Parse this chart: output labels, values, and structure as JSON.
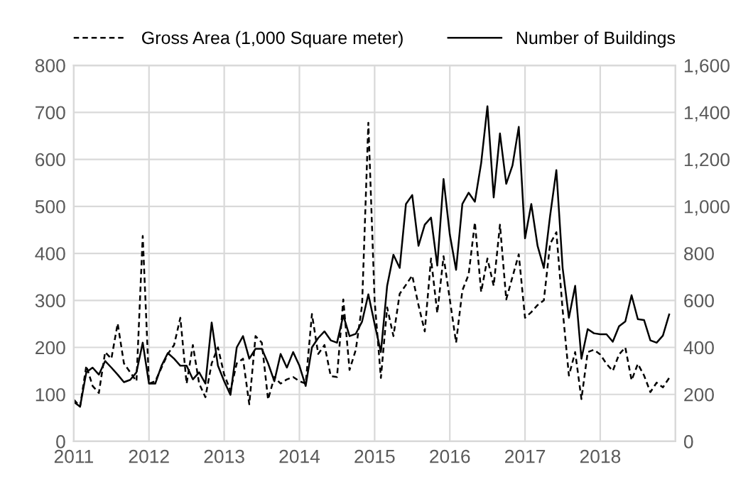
{
  "chart_data": {
    "type": "line",
    "legend": "top",
    "grid": true,
    "marker": "none",
    "x": [
      "2011-01",
      "2011-02",
      "2011-03",
      "2011-04",
      "2011-05",
      "2011-06",
      "2011-07",
      "2011-08",
      "2011-09",
      "2011-10",
      "2011-11",
      "2011-12",
      "2012-01",
      "2012-02",
      "2012-03",
      "2012-04",
      "2012-05",
      "2012-06",
      "2012-07",
      "2012-08",
      "2012-09",
      "2012-10",
      "2012-11",
      "2012-12",
      "2013-01",
      "2013-02",
      "2013-03",
      "2013-04",
      "2013-05",
      "2013-06",
      "2013-07",
      "2013-08",
      "2013-09",
      "2013-10",
      "2013-11",
      "2013-12",
      "2014-01",
      "2014-02",
      "2014-03",
      "2014-04",
      "2014-05",
      "2014-06",
      "2014-07",
      "2014-08",
      "2014-09",
      "2014-10",
      "2014-11",
      "2014-12",
      "2015-01",
      "2015-02",
      "2015-03",
      "2015-04",
      "2015-05",
      "2015-06",
      "2015-07",
      "2015-08",
      "2015-09",
      "2015-10",
      "2015-11",
      "2015-12",
      "2016-01",
      "2016-02",
      "2016-03",
      "2016-04",
      "2016-05",
      "2016-06",
      "2016-07",
      "2016-08",
      "2016-09",
      "2016-10",
      "2016-11",
      "2016-12",
      "2017-01",
      "2017-02",
      "2017-03",
      "2017-04",
      "2017-05",
      "2017-06",
      "2017-07",
      "2017-08",
      "2017-09",
      "2017-10",
      "2017-11",
      "2017-12",
      "2018-01",
      "2018-02",
      "2018-03",
      "2018-04",
      "2018-05",
      "2018-06",
      "2018-07",
      "2018-08",
      "2018-09",
      "2018-10",
      "2018-11",
      "2018-12"
    ],
    "xlim": [
      "2011-01",
      "2019-01"
    ],
    "xticks": [
      "2011",
      "2012",
      "2013",
      "2014",
      "2015",
      "2016",
      "2017",
      "2018"
    ],
    "ylim": [
      0,
      800
    ],
    "yticks": [
      0,
      100,
      200,
      300,
      400,
      500,
      600,
      700,
      800
    ],
    "y2lim": [
      0,
      1600
    ],
    "y2ticks": [
      0,
      200,
      400,
      600,
      800,
      {
        "value": 1000,
        "label": "1,000"
      },
      {
        "value": 1200,
        "label": "1,200"
      },
      {
        "value": 1400,
        "label": "1,400"
      },
      {
        "value": 1600,
        "label": "1,600"
      }
    ],
    "series": [
      {
        "name": "Gross Area (1,000 Square meter)",
        "color": "#000000",
        "line_style": "dashed",
        "values": [
          89,
          74,
          161,
          118,
          103,
          190,
          176,
          251,
          166,
          147,
          128,
          437,
          123,
          128,
          157,
          186,
          205,
          263,
          123,
          205,
          123,
          94,
          166,
          200,
          142,
          108,
          166,
          176,
          79,
          224,
          210,
          89,
          137,
          123,
          132,
          137,
          128,
          123,
          271,
          186,
          205,
          139,
          137,
          302,
          152,
          195,
          290,
          678,
          300,
          135,
          285,
          224,
          314,
          333,
          353,
          290,
          234,
          389,
          273,
          394,
          302,
          210,
          321,
          355,
          466,
          318,
          389,
          331,
          461,
          302,
          350,
          398,
          263,
          275,
          290,
          300,
          420,
          445,
          280,
          140,
          190,
          90,
          190,
          195,
          185,
          165,
          150,
          185,
          200,
          130,
          165,
          140,
          105,
          125,
          115,
          135
        ]
      },
      {
        "name": "Number of Buildings",
        "color": "#000000",
        "line_style": "solid",
        "axis": "y2",
        "values": [
          168,
          148,
          294,
          314,
          284,
          342,
          314,
          284,
          252,
          262,
          294,
          420,
          246,
          246,
          322,
          376,
          352,
          322,
          322,
          264,
          294,
          246,
          506,
          322,
          256,
          198,
          400,
          448,
          352,
          394,
          394,
          332,
          256,
          372,
          314,
          380,
          322,
          236,
          400,
          440,
          468,
          430,
          420,
          536,
          448,
          458,
          510,
          626,
          500,
          380,
          662,
          794,
          738,
          1010,
          1048,
          832,
          922,
          952,
          748,
          1116,
          880,
          730,
          1010,
          1058,
          1020,
          1184,
          1426,
          1038,
          1310,
          1096,
          1174,
          1338,
          864,
          1010,
          832,
          738,
          960,
          1154,
          738,
          526,
          662,
          352,
          478,
          460,
          456,
          456,
          424,
          490,
          510,
          622,
          520,
          516,
          430,
          420,
          450,
          540
        ]
      }
    ]
  }
}
